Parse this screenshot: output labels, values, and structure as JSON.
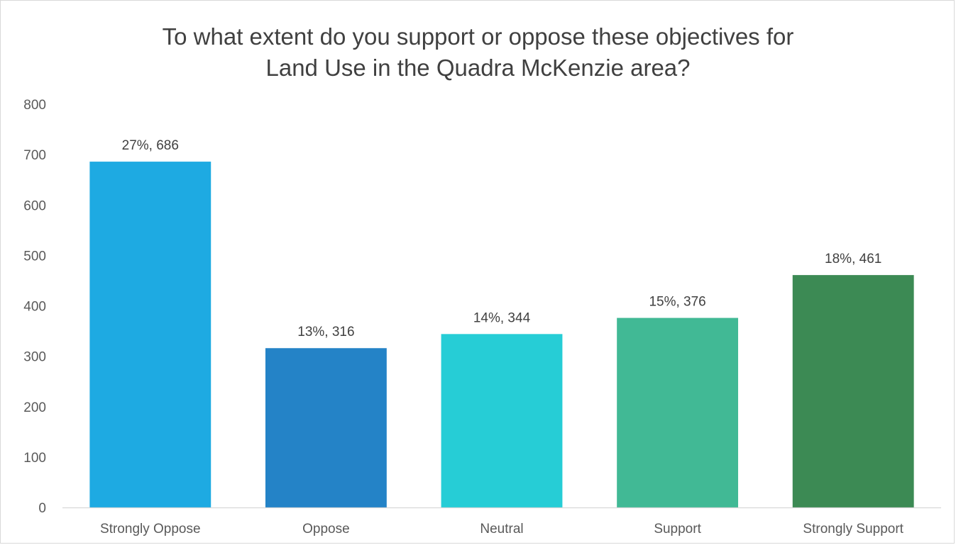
{
  "chart_data": {
    "type": "bar",
    "title": "To what extent do you support or oppose these objectives for Land Use in the Quadra McKenzie area?",
    "title_lines": [
      "To what extent do you support or oppose these objectives for",
      "Land Use in the Quadra McKenzie area?"
    ],
    "xlabel": "",
    "ylabel": "",
    "categories": [
      "Strongly Oppose",
      "Oppose",
      "Neutral",
      "Support",
      "Strongly Support"
    ],
    "values": [
      686,
      316,
      344,
      376,
      461
    ],
    "percentages": [
      "27%",
      "13%",
      "14%",
      "15%",
      "18%"
    ],
    "data_labels": [
      "27%, 686",
      "13%, 316",
      "14%, 344",
      "15%, 376",
      "18%, 461"
    ],
    "colors": [
      "#1EAAE2",
      "#2483C7",
      "#26CDD6",
      "#41B995",
      "#3C8A54"
    ],
    "ylim": [
      0,
      800
    ],
    "yticks": [
      0,
      100,
      200,
      300,
      400,
      500,
      600,
      700,
      800
    ],
    "ytick_labels": [
      "0",
      "100",
      "200",
      "300",
      "400",
      "500",
      "600",
      "700",
      "800"
    ],
    "grid": false,
    "legend": "none",
    "text_color": "#595959",
    "title_color": "#404040",
    "axis_color": "#d9d9d9"
  }
}
